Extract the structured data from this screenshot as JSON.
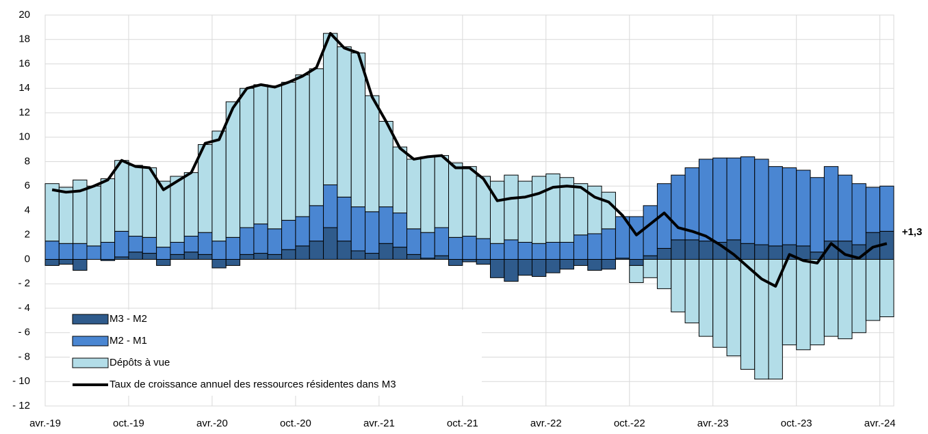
{
  "chart_data": {
    "type": "stacked-bar-line",
    "categories": [
      "avr.-19",
      null,
      null,
      null,
      null,
      null,
      "oct.-19",
      null,
      null,
      null,
      null,
      null,
      "avr.-20",
      null,
      null,
      null,
      null,
      null,
      "oct.-20",
      null,
      null,
      null,
      null,
      null,
      "avr.-21",
      null,
      null,
      null,
      null,
      null,
      "oct.-21",
      null,
      null,
      null,
      null,
      null,
      "avr.-22",
      null,
      null,
      null,
      null,
      null,
      "oct.-22",
      null,
      null,
      null,
      null,
      null,
      "avr.-23",
      null,
      null,
      null,
      null,
      null,
      "oct.-23",
      null,
      null,
      null,
      null,
      null,
      "avr.-24"
    ],
    "series": [
      {
        "name": "M3 - M2",
        "kind": "bar",
        "color": "#2f5b8c",
        "values": [
          -0.5,
          -0.4,
          -0.9,
          0.0,
          -0.1,
          0.2,
          0.6,
          0.5,
          -0.5,
          0.4,
          0.6,
          0.4,
          -0.7,
          -0.5,
          0.4,
          0.5,
          0.4,
          0.8,
          1.1,
          1.5,
          2.6,
          1.5,
          0.7,
          0.5,
          1.3,
          1.0,
          0.4,
          0.1,
          0.3,
          -0.5,
          -0.2,
          -0.4,
          -1.5,
          -1.8,
          -1.3,
          -1.4,
          -1.1,
          -0.8,
          -0.5,
          -0.9,
          -0.8,
          0.1,
          -0.5,
          0.3,
          0.9,
          1.6,
          1.6,
          1.5,
          1.4,
          1.6,
          1.3,
          1.2,
          1.1,
          1.2,
          1.1,
          0.6,
          1.5,
          1.5,
          1.2,
          2.2,
          2.3
        ]
      },
      {
        "name": "M2 - M1",
        "kind": "bar",
        "color": "#4a86d2",
        "values": [
          1.5,
          1.3,
          1.3,
          1.1,
          1.4,
          2.1,
          1.3,
          1.3,
          1.0,
          1.0,
          1.3,
          1.8,
          1.5,
          1.8,
          2.2,
          2.4,
          2.1,
          2.4,
          2.4,
          2.9,
          3.5,
          3.6,
          3.6,
          3.4,
          3.0,
          2.8,
          2.1,
          2.1,
          2.3,
          1.8,
          1.9,
          1.7,
          1.3,
          1.6,
          1.4,
          1.3,
          1.4,
          1.4,
          2.0,
          2.1,
          2.5,
          3.4,
          3.5,
          4.1,
          5.3,
          5.3,
          5.9,
          6.7,
          6.9,
          6.7,
          7.1,
          7.0,
          6.5,
          6.3,
          6.2,
          6.1,
          6.1,
          5.4,
          5.0,
          3.7,
          3.7
        ]
      },
      {
        "name": "Dépôts à vue",
        "kind": "bar",
        "color": "#b3dde8",
        "values": [
          4.7,
          4.6,
          5.2,
          4.9,
          5.2,
          5.8,
          5.8,
          5.7,
          5.4,
          5.4,
          5.2,
          7.2,
          9.0,
          11.1,
          11.4,
          11.4,
          11.7,
          11.3,
          11.6,
          11.2,
          12.4,
          12.3,
          12.6,
          9.5,
          7.0,
          5.4,
          5.7,
          6.2,
          5.9,
          6.1,
          5.7,
          5.1,
          5.1,
          5.3,
          5.0,
          5.5,
          5.6,
          5.3,
          4.2,
          3.9,
          3.0,
          0.0,
          -1.4,
          -1.5,
          -2.4,
          -4.3,
          -5.2,
          -6.3,
          -7.2,
          -7.9,
          -9.0,
          -9.8,
          -9.8,
          -7.0,
          -7.4,
          -7.0,
          -6.3,
          -6.5,
          -6.0,
          -5.0,
          -4.7
        ]
      },
      {
        "name": "Taux de croissance annuel des ressources résidentes dans M3",
        "kind": "line",
        "color": "#000000",
        "values": [
          5.7,
          5.5,
          5.6,
          6.0,
          6.5,
          8.1,
          7.6,
          7.5,
          5.7,
          6.4,
          7.1,
          9.5,
          9.8,
          12.4,
          14.0,
          14.3,
          14.1,
          14.5,
          15.0,
          15.7,
          18.5,
          17.3,
          16.9,
          13.3,
          11.3,
          9.1,
          8.2,
          8.4,
          8.5,
          7.5,
          7.5,
          6.6,
          4.8,
          5.0,
          5.1,
          5.4,
          5.9,
          6.0,
          5.9,
          5.1,
          4.7,
          3.6,
          2.0,
          2.9,
          3.8,
          2.6,
          2.3,
          1.9,
          1.2,
          0.4,
          -0.6,
          -1.6,
          -2.2,
          0.4,
          -0.1,
          -0.3,
          1.3,
          0.4,
          0.1,
          1.0,
          1.3
        ],
        "value_labels": [
          null,
          null,
          null,
          null,
          null,
          null,
          null,
          null,
          null,
          null,
          null,
          null,
          null,
          null,
          null,
          null,
          null,
          null,
          null,
          null,
          null,
          null,
          null,
          null,
          null,
          null,
          null,
          null,
          null,
          null,
          null,
          null,
          null,
          null,
          null,
          null,
          null,
          null,
          null,
          null,
          null,
          null,
          null,
          null,
          null,
          null,
          null,
          null,
          null,
          null,
          null,
          null,
          null,
          null,
          null,
          null,
          null,
          null,
          null,
          null,
          "+1,3"
        ]
      }
    ],
    "ylim": [
      -12,
      20
    ],
    "yticks": [
      {
        "value": -12,
        "label": "- 12"
      },
      {
        "value": -10,
        "label": "- 10"
      },
      {
        "value": -8,
        "label": "- 8"
      },
      {
        "value": -6,
        "label": "- 6"
      },
      {
        "value": -4,
        "label": "- 4"
      },
      {
        "value": -2,
        "label": "- 2"
      },
      0,
      2,
      4,
      6,
      8,
      10,
      12,
      14,
      16,
      18,
      20
    ],
    "grid": true,
    "legend": "lower left"
  }
}
